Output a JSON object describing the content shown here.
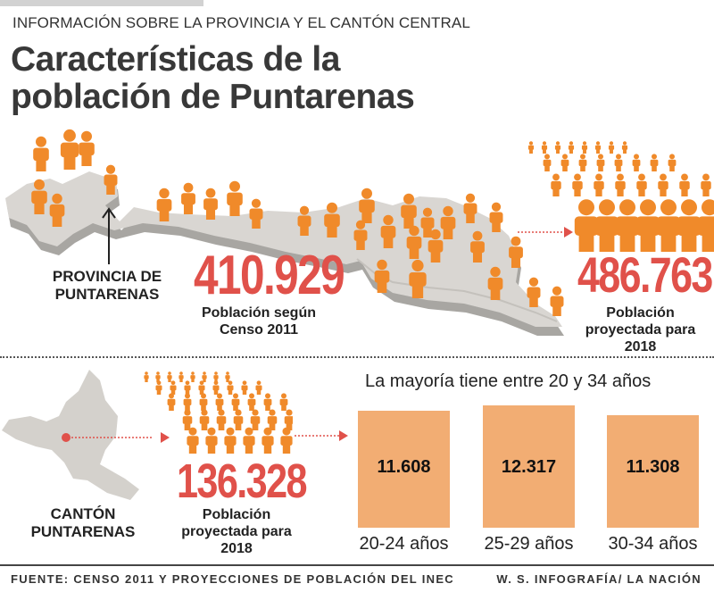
{
  "header": {
    "kicker": "INFORMACIÓN SOBRE LA PROVINCIA Y EL CANTÓN CENTRAL",
    "title_line1": "Características de la",
    "title_line2": "población de Puntarenas"
  },
  "province": {
    "label_line1": "PROVINCIA DE",
    "label_line2": "PUNTARENAS",
    "census_value": "410.929",
    "census_caption_line1": "Población según",
    "census_caption_line2": "Censo 2011",
    "projected_value": "486.763",
    "projected_caption_line1": "Población",
    "projected_caption_line2": "proyectada para",
    "projected_caption_line3": "2018"
  },
  "canton": {
    "label_line1": "CANTÓN",
    "label_line2": "PUNTARENAS",
    "projected_value": "136.328",
    "projected_caption_line1": "Población",
    "projected_caption_line2": "proyectada para",
    "projected_caption_line3": "2018"
  },
  "age_groups": {
    "heading": "La mayoría tiene entre 20 y 34 años",
    "items": [
      {
        "range": "20-24 años",
        "value": "11.608"
      },
      {
        "range": "25-29 años",
        "value": "12.317"
      },
      {
        "range": "30-34 años",
        "value": "11.308"
      }
    ]
  },
  "footer": {
    "source": "FUENTE: CENSO 2011 Y PROYECCIONES DE POBLACIÓN DEL INEC",
    "credit": "W. S. INFOGRAFÍA/ LA NACIÓN"
  },
  "colors": {
    "accent_red": "#e0514a",
    "person_orange": "#f08a2a",
    "box_orange": "#f2ad73",
    "map_gray": "#d9d6d2"
  },
  "icons": {
    "person": "person-icon",
    "arrow": "arrow-up-icon",
    "connector": "dotted-arrow-icon"
  }
}
